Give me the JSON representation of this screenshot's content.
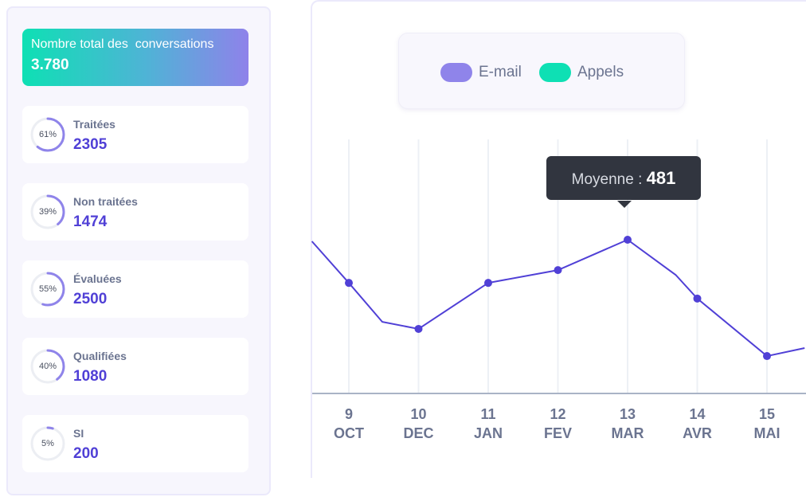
{
  "summary": {
    "label": "Nombre total des  conversations",
    "value": "3.780"
  },
  "cards": [
    {
      "label": "Traitées",
      "value": "2305",
      "percent_label": "61%",
      "percent": 61
    },
    {
      "label": "Non traitées",
      "value": "1474",
      "percent_label": "39%",
      "percent": 39
    },
    {
      "label": "Évaluées",
      "value": "2500",
      "percent_label": "55%",
      "percent": 55
    },
    {
      "label": "Qualifiées",
      "value": "1080",
      "percent_label": "40%",
      "percent": 40
    },
    {
      "label": "SI",
      "value": "200",
      "percent_label": "5%",
      "percent": 5
    }
  ],
  "colors": {
    "accent": "#5040d6",
    "email": "#8f84ea",
    "appels": "#0ee0b4",
    "ring_track": "#eceef3"
  },
  "chart_data": {
    "type": "line",
    "legend": [
      {
        "name": "E-mail",
        "color": "#8f84ea"
      },
      {
        "name": "Appels",
        "color": "#0ee0b4"
      }
    ],
    "legend_position": "top",
    "categories": [
      {
        "day": "9",
        "month": "OCT"
      },
      {
        "day": "10",
        "month": "DEC"
      },
      {
        "day": "11",
        "month": "JAN"
      },
      {
        "day": "12",
        "month": "FEV"
      },
      {
        "day": "13",
        "month": "MAR"
      },
      {
        "day": "14",
        "month": "AVR"
      },
      {
        "day": "15",
        "month": "MAI"
      }
    ],
    "series": [
      {
        "color": "#5040d6",
        "values": [
          346,
          202,
          346,
          386,
          481,
          297,
          117
        ],
        "line_points": [
          [
            -0.53,
            476
          ],
          [
            0,
            346
          ],
          [
            0.48,
            224
          ],
          [
            1,
            202
          ],
          [
            2,
            346
          ],
          [
            3,
            386
          ],
          [
            4,
            481
          ],
          [
            4.69,
            371
          ],
          [
            5,
            297
          ],
          [
            6,
            117
          ],
          [
            6.54,
            142
          ]
        ]
      }
    ],
    "grid": "vertical",
    "tooltip": {
      "label": "Moyenne :",
      "value": "481",
      "category_index": 4
    }
  }
}
